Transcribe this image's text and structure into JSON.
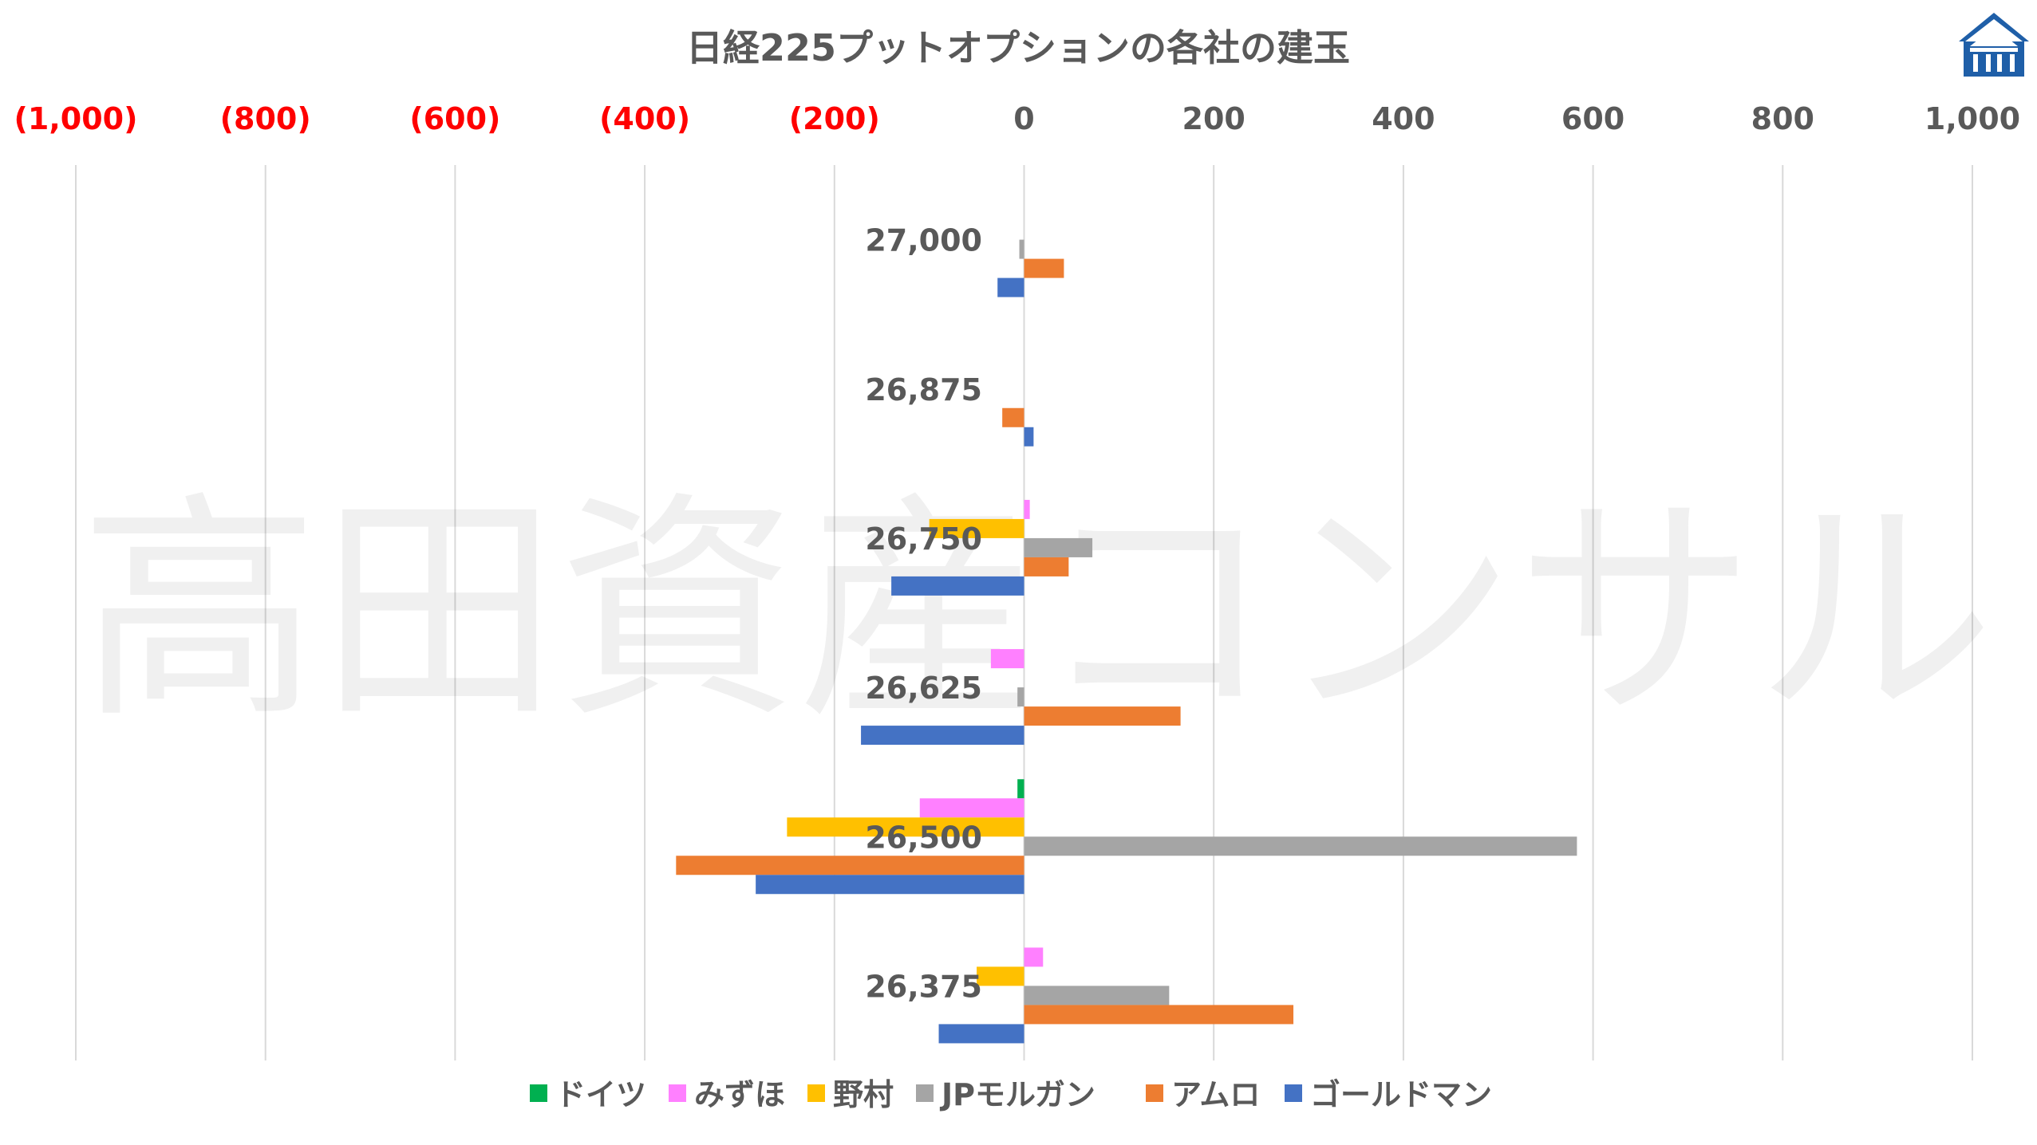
{
  "chart_data": {
    "type": "bar",
    "orientation": "horizontal",
    "title": "日経225プットオプションの各社の建玉",
    "xlim": [
      -1000,
      1000
    ],
    "x_ticks": [
      -1000,
      -800,
      -600,
      -400,
      -200,
      0,
      200,
      400,
      600,
      800,
      1000
    ],
    "x_tick_labels": [
      "(1,000)",
      "(800)",
      "(600)",
      "(400)",
      "(200)",
      "0",
      "200",
      "400",
      "600",
      "800",
      "1,000"
    ],
    "negative_tick_color": "#FF0000",
    "positive_tick_color": "#595959",
    "grid": true,
    "legend_position": "bottom",
    "categories": [
      "27,000",
      "26,875",
      "26,750",
      "26,625",
      "26,500",
      "26,375"
    ],
    "series": [
      {
        "name": "ドイツ",
        "color": "#00B050",
        "values": [
          0,
          0,
          0,
          0,
          -7,
          0
        ]
      },
      {
        "name": "みずほ",
        "color": "#FF80FF",
        "values": [
          0,
          0,
          6,
          -35,
          -110,
          20
        ]
      },
      {
        "name": "野村",
        "color": "#FFC000",
        "values": [
          0,
          0,
          -100,
          0,
          -250,
          -50
        ]
      },
      {
        "name": "JPモルガン",
        "color": "#A5A5A5",
        "values": [
          -5,
          0,
          72,
          -7,
          583,
          153
        ]
      },
      {
        "name": "アムロ",
        "color": "#ED7D31",
        "values": [
          42,
          -23,
          47,
          165,
          -367,
          284
        ]
      },
      {
        "name": "ゴールドマン",
        "color": "#4472C4",
        "values": [
          -28,
          10,
          -140,
          -172,
          -283,
          -90
        ]
      }
    ]
  },
  "watermark_text": "高田資産コンサル",
  "logo_icon": "house-logo-icon"
}
